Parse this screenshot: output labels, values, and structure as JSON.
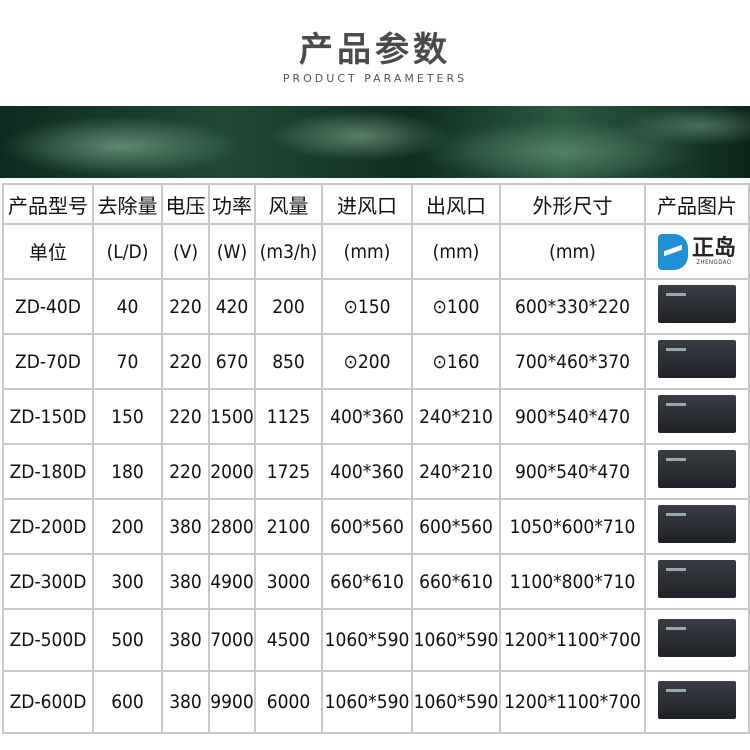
{
  "header": {
    "title": "产品参数",
    "subtitle": "PRODUCT PARAMETERS"
  },
  "table": {
    "headers": [
      "产品型号",
      "去除量",
      "电压",
      "功率",
      "风量",
      "进风口",
      "出风口",
      "外形尺寸",
      "产品图片"
    ],
    "units": [
      "单位",
      "(L/D)",
      "(V)",
      "(W)",
      "(m3/h)",
      "(mm)",
      "(mm)",
      "(mm)"
    ],
    "logo": {
      "cn": "正岛",
      "en": "ZHENGDAO",
      "color": "#1f8fd6"
    },
    "rows": [
      [
        "ZD-40D",
        "40",
        "220",
        "420",
        "200",
        "⊙150",
        "⊙100",
        "600*330*220"
      ],
      [
        "ZD-70D",
        "70",
        "220",
        "670",
        "850",
        "⊙200",
        "⊙160",
        "700*460*370"
      ],
      [
        "ZD-150D",
        "150",
        "220",
        "1500",
        "1125",
        "400*360",
        "240*210",
        "900*540*470"
      ],
      [
        "ZD-180D",
        "180",
        "220",
        "2000",
        "1725",
        "400*360",
        "240*210",
        "900*540*470"
      ],
      [
        "ZD-200D",
        "200",
        "380",
        "2800",
        "2100",
        "600*560",
        "600*560",
        "1050*600*710"
      ],
      [
        "ZD-300D",
        "300",
        "380",
        "4900",
        "3000",
        "660*610",
        "660*610",
        "1100*800*710"
      ],
      [
        "ZD-500D",
        "500",
        "380",
        "7000",
        "4500",
        "1060*590",
        "1060*590",
        "1200*1100*700"
      ],
      [
        "ZD-600D",
        "600",
        "380",
        "9900",
        "6000",
        "1060*590",
        "1060*590",
        "1200*1100*700"
      ]
    ]
  }
}
